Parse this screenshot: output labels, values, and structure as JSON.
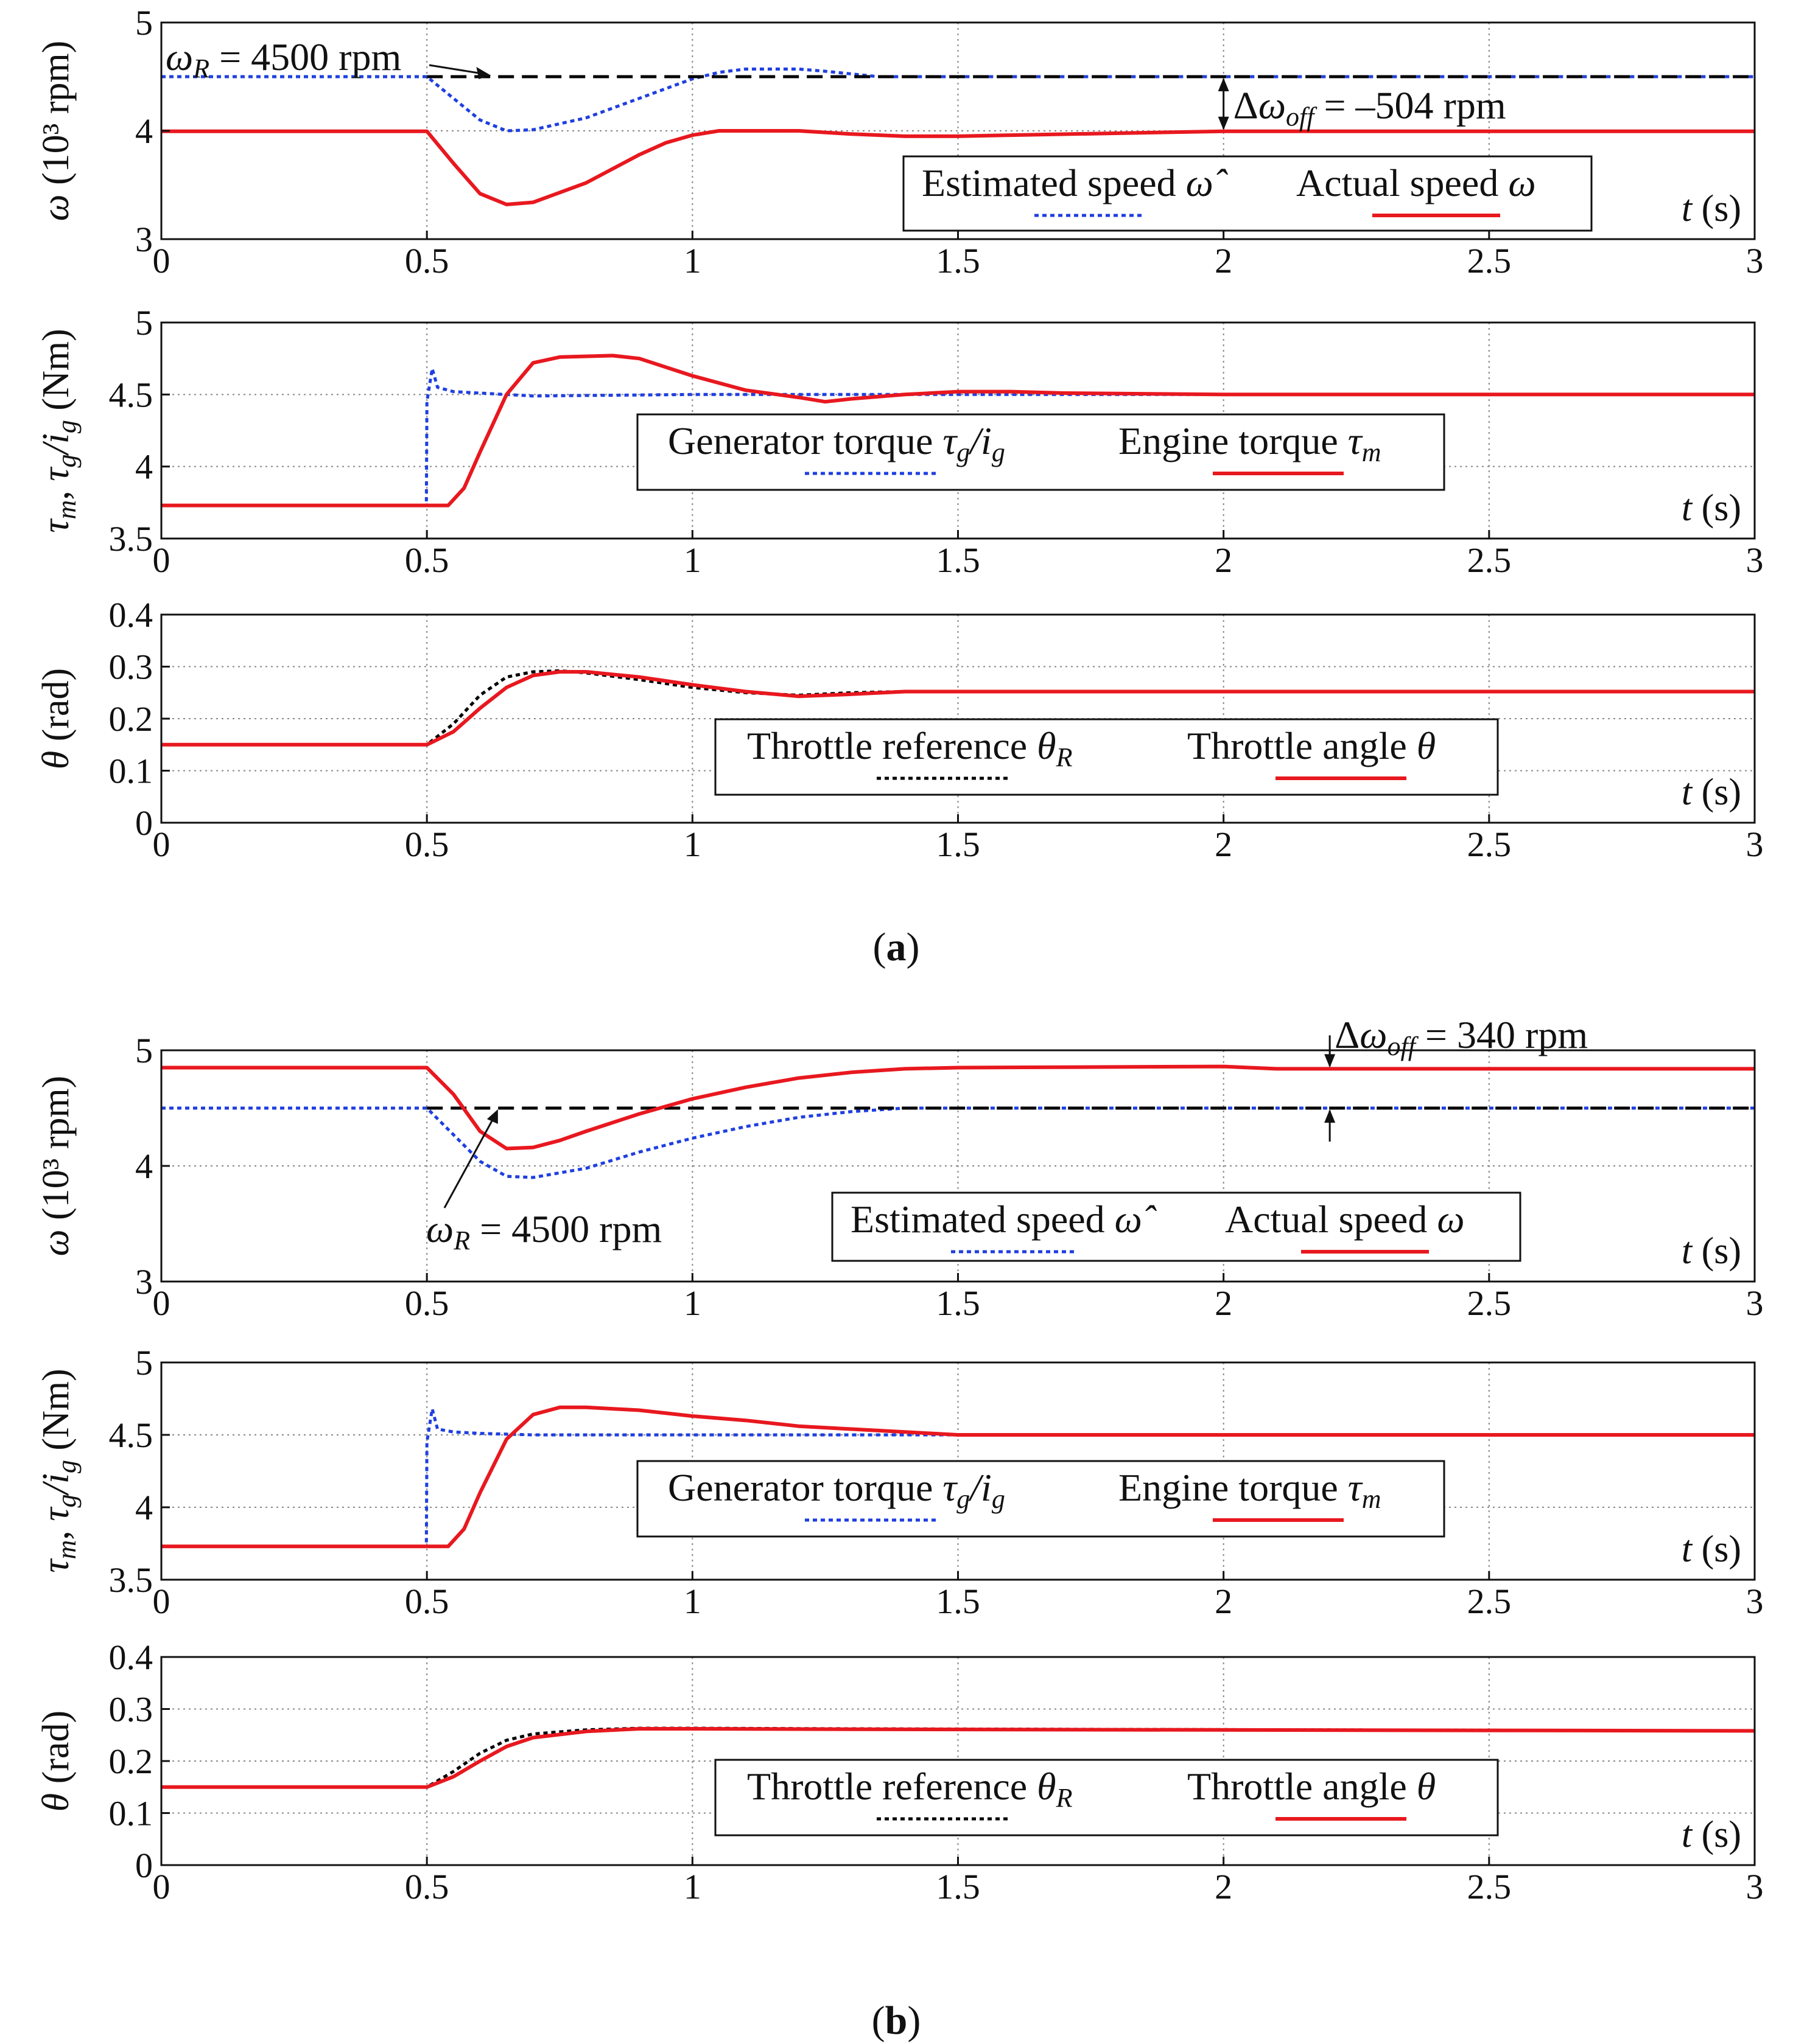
{
  "figure": {
    "captions": [
      "a",
      "b"
    ],
    "colors": {
      "estimated": "#1f3fe0",
      "actual": "#e8181f",
      "reference": "#000000",
      "grid": "#888888"
    }
  },
  "chart_data": [
    {
      "id": "a-speed",
      "type": "line",
      "panel": "a",
      "xlim": [
        0,
        3
      ],
      "ylim": [
        3,
        5
      ],
      "xticks": [
        "0",
        "0.5",
        "1",
        "1.5",
        "2",
        "2.5",
        "3"
      ],
      "yticks": [
        "3",
        "4",
        "5"
      ],
      "ylabel": "ω (10³ rpm)",
      "xlabel": "t (s)",
      "grid": true,
      "legend_position": "bottom-right",
      "series": [
        {
          "name": "Estimated speed ω̂",
          "color": "#1f3fe0",
          "dash": "dot",
          "x": [
            0,
            0.5,
            0.55,
            0.6,
            0.65,
            0.7,
            0.8,
            0.9,
            1.0,
            1.05,
            1.1,
            1.2,
            1.25,
            1.35,
            1.5,
            2.0,
            3.0
          ],
          "y": [
            4.5,
            4.5,
            4.3,
            4.1,
            4.0,
            4.01,
            4.12,
            4.3,
            4.48,
            4.54,
            4.57,
            4.57,
            4.55,
            4.5,
            4.5,
            4.5,
            4.5
          ]
        },
        {
          "name": "Actual speed ω",
          "color": "#e8181f",
          "dash": "solid",
          "x": [
            0,
            0.5,
            0.55,
            0.6,
            0.65,
            0.7,
            0.8,
            0.9,
            0.95,
            1.0,
            1.05,
            1.2,
            1.3,
            1.4,
            1.5,
            1.6,
            2.0,
            3.0
          ],
          "y": [
            3.996,
            3.996,
            3.7,
            3.42,
            3.32,
            3.34,
            3.52,
            3.78,
            3.89,
            3.96,
            4.0,
            4.0,
            3.97,
            3.95,
            3.95,
            3.96,
            3.996,
            3.996
          ]
        },
        {
          "name": "ω_R",
          "color": "#000000",
          "dash": "dash",
          "x": [
            0.5,
            3.0
          ],
          "y": [
            4.5,
            4.5
          ]
        }
      ],
      "annotations": [
        {
          "text": "ω_R = 4500 rpm",
          "at": [
            0.6,
            4.5
          ]
        },
        {
          "text": "Δω_off = –504 rpm",
          "at": [
            2.0,
            4.25
          ]
        }
      ]
    },
    {
      "id": "a-torque",
      "type": "line",
      "panel": "a",
      "xlim": [
        0,
        3
      ],
      "ylim": [
        3.5,
        5
      ],
      "xticks": [
        "0",
        "0.5",
        "1",
        "1.5",
        "2",
        "2.5",
        "3"
      ],
      "yticks": [
        "3.5",
        "4",
        "4.5",
        "5"
      ],
      "ylabel": "τm, τg/ig (Nm)",
      "xlabel": "t (s)",
      "grid": true,
      "legend_position": "bottom-right",
      "series": [
        {
          "name": "Generator torque τg/ig",
          "color": "#1f3fe0",
          "dash": "dot",
          "x": [
            0,
            0.499,
            0.5,
            0.51,
            0.52,
            0.55,
            0.6,
            0.7,
            1.0,
            3.0
          ],
          "y": [
            3.73,
            3.73,
            4.45,
            4.68,
            4.55,
            4.52,
            4.51,
            4.49,
            4.5,
            4.5
          ]
        },
        {
          "name": "Engine torque τm",
          "color": "#e8181f",
          "dash": "solid",
          "x": [
            0,
            0.5,
            0.54,
            0.57,
            0.6,
            0.65,
            0.7,
            0.75,
            0.85,
            0.9,
            1.0,
            1.1,
            1.2,
            1.25,
            1.3,
            1.4,
            1.5,
            1.6,
            1.7,
            2.0,
            3.0
          ],
          "y": [
            3.73,
            3.73,
            3.73,
            3.85,
            4.1,
            4.5,
            4.72,
            4.76,
            4.77,
            4.75,
            4.63,
            4.53,
            4.48,
            4.45,
            4.47,
            4.5,
            4.52,
            4.52,
            4.51,
            4.5,
            4.5
          ]
        }
      ]
    },
    {
      "id": "a-throttle",
      "type": "line",
      "panel": "a",
      "xlim": [
        0,
        3
      ],
      "ylim": [
        0,
        0.4
      ],
      "xticks": [
        "0",
        "0.5",
        "1",
        "1.5",
        "2",
        "2.5",
        "3"
      ],
      "yticks": [
        "0",
        "0.1",
        "0.2",
        "0.3",
        "0.4"
      ],
      "ylabel": "θ (rad)",
      "xlabel": "t (s)",
      "grid": true,
      "legend_position": "bottom-right",
      "series": [
        {
          "name": "Throttle reference θR",
          "color": "#000000",
          "dash": "dot",
          "x": [
            0,
            0.5,
            0.55,
            0.6,
            0.65,
            0.7,
            0.75,
            0.8,
            0.9,
            1.0,
            1.1,
            1.2,
            1.3,
            1.4,
            3.0
          ],
          "y": [
            0.15,
            0.15,
            0.19,
            0.245,
            0.28,
            0.29,
            0.292,
            0.288,
            0.275,
            0.26,
            0.25,
            0.245,
            0.25,
            0.252,
            0.252
          ]
        },
        {
          "name": "Throttle angle θ",
          "color": "#e8181f",
          "dash": "solid",
          "x": [
            0,
            0.5,
            0.55,
            0.6,
            0.65,
            0.7,
            0.75,
            0.8,
            0.9,
            1.0,
            1.1,
            1.2,
            1.3,
            1.4,
            1.5,
            3.0
          ],
          "y": [
            0.15,
            0.15,
            0.175,
            0.22,
            0.26,
            0.283,
            0.29,
            0.29,
            0.28,
            0.265,
            0.252,
            0.243,
            0.247,
            0.252,
            0.252,
            0.252
          ]
        }
      ]
    },
    {
      "id": "b-speed",
      "type": "line",
      "panel": "b",
      "xlim": [
        0,
        3
      ],
      "ylim": [
        3,
        5
      ],
      "xticks": [
        "0",
        "0.5",
        "1",
        "1.5",
        "2",
        "2.5",
        "3"
      ],
      "yticks": [
        "3",
        "4",
        "5"
      ],
      "ylabel": "ω (10³ rpm)",
      "xlabel": "t (s)",
      "grid": true,
      "legend_position": "bottom-right",
      "series": [
        {
          "name": "Estimated speed ω̂",
          "color": "#1f3fe0",
          "dash": "dot",
          "x": [
            0,
            0.5,
            0.55,
            0.6,
            0.65,
            0.7,
            0.8,
            0.9,
            1.0,
            1.1,
            1.2,
            1.3,
            1.4,
            1.5,
            3.0
          ],
          "y": [
            4.5,
            4.5,
            4.27,
            4.04,
            3.91,
            3.9,
            3.98,
            4.12,
            4.24,
            4.34,
            4.42,
            4.47,
            4.5,
            4.5,
            4.5
          ]
        },
        {
          "name": "Actual speed ω",
          "color": "#e8181f",
          "dash": "solid",
          "x": [
            0,
            0.5,
            0.55,
            0.6,
            0.65,
            0.7,
            0.75,
            0.8,
            0.9,
            1.0,
            1.1,
            1.2,
            1.3,
            1.4,
            1.5,
            2.0,
            2.1,
            3.0
          ],
          "y": [
            4.85,
            4.85,
            4.62,
            4.3,
            4.15,
            4.16,
            4.22,
            4.3,
            4.45,
            4.58,
            4.68,
            4.76,
            4.81,
            4.84,
            4.85,
            4.86,
            4.84,
            4.84
          ]
        },
        {
          "name": "ω_R",
          "color": "#000000",
          "dash": "dash",
          "x": [
            0.5,
            3.0
          ],
          "y": [
            4.5,
            4.5
          ]
        }
      ],
      "annotations": [
        {
          "text": "ω_R = 4500 rpm",
          "at": [
            0.62,
            4.5
          ]
        },
        {
          "text": "Δω_off = 340 rpm",
          "at": [
            2.2,
            4.67
          ]
        }
      ]
    },
    {
      "id": "b-torque",
      "type": "line",
      "panel": "b",
      "xlim": [
        0,
        3
      ],
      "ylim": [
        3.5,
        5
      ],
      "xticks": [
        "0",
        "0.5",
        "1",
        "1.5",
        "2",
        "2.5",
        "3"
      ],
      "yticks": [
        "3.5",
        "4",
        "4.5",
        "5"
      ],
      "ylabel": "τm, τg/ig (Nm)",
      "xlabel": "t (s)",
      "grid": true,
      "legend_position": "bottom-right",
      "series": [
        {
          "name": "Generator torque τg/ig",
          "color": "#1f3fe0",
          "dash": "dot",
          "x": [
            0,
            0.499,
            0.5,
            0.51,
            0.52,
            0.55,
            0.6,
            0.7,
            3.0
          ],
          "y": [
            3.73,
            3.73,
            4.45,
            4.68,
            4.54,
            4.52,
            4.51,
            4.5,
            4.5
          ]
        },
        {
          "name": "Engine torque τm",
          "color": "#e8181f",
          "dash": "solid",
          "x": [
            0,
            0.5,
            0.54,
            0.57,
            0.6,
            0.65,
            0.7,
            0.75,
            0.8,
            0.9,
            1.0,
            1.1,
            1.2,
            1.3,
            1.4,
            1.5,
            3.0
          ],
          "y": [
            3.73,
            3.73,
            3.73,
            3.85,
            4.1,
            4.47,
            4.64,
            4.69,
            4.69,
            4.67,
            4.63,
            4.6,
            4.56,
            4.54,
            4.52,
            4.5,
            4.5
          ]
        }
      ]
    },
    {
      "id": "b-throttle",
      "type": "line",
      "panel": "b",
      "xlim": [
        0,
        3
      ],
      "ylim": [
        0,
        0.4
      ],
      "xticks": [
        "0",
        "0.5",
        "1",
        "1.5",
        "2",
        "2.5",
        "3"
      ],
      "yticks": [
        "0",
        "0.1",
        "0.2",
        "0.3",
        "0.4"
      ],
      "ylabel": "θ (rad)",
      "xlabel": "t (s)",
      "grid": true,
      "legend_position": "bottom-right",
      "series": [
        {
          "name": "Throttle reference θR",
          "color": "#000000",
          "dash": "dot",
          "x": [
            0,
            0.5,
            0.55,
            0.6,
            0.65,
            0.7,
            0.8,
            0.9,
            1.0,
            1.3,
            3.0
          ],
          "y": [
            0.15,
            0.15,
            0.18,
            0.215,
            0.24,
            0.252,
            0.26,
            0.263,
            0.263,
            0.262,
            0.258
          ]
        },
        {
          "name": "Throttle angle θ",
          "color": "#e8181f",
          "dash": "solid",
          "x": [
            0,
            0.5,
            0.55,
            0.6,
            0.65,
            0.7,
            0.8,
            0.9,
            1.0,
            1.3,
            3.0
          ],
          "y": [
            0.15,
            0.15,
            0.17,
            0.2,
            0.228,
            0.245,
            0.257,
            0.262,
            0.262,
            0.261,
            0.258
          ]
        }
      ]
    }
  ]
}
